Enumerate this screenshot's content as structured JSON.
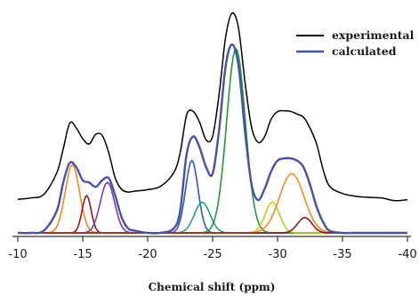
{
  "chart_data": {
    "type": "line",
    "xlabel": "Chemical shift (ppm)",
    "ylabel": "",
    "xlim": [
      -10,
      -40
    ],
    "x_reversed": false,
    "grid": false,
    "legend_placement": "top-right",
    "x_ticks": [
      -10,
      -15,
      -20,
      -25,
      -30,
      -35,
      -40
    ],
    "x_tick_labels": [
      "-10",
      "-15",
      "-20",
      "-25",
      "-30",
      "-35",
      "-40"
    ],
    "series": [
      {
        "name": "experimental",
        "color": "#000000",
        "x": [
          -10,
          -11,
          -12,
          -13,
          -13.5,
          -14,
          -14.5,
          -15,
          -15.5,
          -16,
          -16.5,
          -17,
          -17.5,
          -18,
          -18.5,
          -19,
          -20,
          -21,
          -22,
          -22.5,
          -23,
          -23.5,
          -24,
          -24.5,
          -25,
          -25.5,
          -26,
          -26.5,
          -27,
          -27.5,
          -28,
          -28.5,
          -29,
          -29.5,
          -30,
          -30.5,
          -31,
          -31.5,
          -32,
          -32.5,
          -33,
          -33.5,
          -34,
          -35,
          -36,
          -37,
          -38,
          -39,
          -40
        ],
        "y": [
          0.09,
          0.1,
          0.12,
          0.22,
          0.34,
          0.46,
          0.44,
          0.39,
          0.36,
          0.41,
          0.4,
          0.32,
          0.2,
          0.14,
          0.13,
          0.13,
          0.14,
          0.16,
          0.22,
          0.32,
          0.5,
          0.52,
          0.47,
          0.38,
          0.4,
          0.6,
          0.88,
          1.0,
          0.92,
          0.66,
          0.44,
          0.37,
          0.4,
          0.48,
          0.52,
          0.52,
          0.52,
          0.51,
          0.49,
          0.44,
          0.36,
          0.24,
          0.16,
          0.12,
          0.11,
          0.1,
          0.1,
          0.09,
          0.09
        ]
      },
      {
        "name": "calculated",
        "color": "#4452a8",
        "x": [
          -10,
          -11,
          -12,
          -13,
          -13.5,
          -14,
          -14.5,
          -15,
          -15.5,
          -16,
          -16.5,
          -17,
          -17.5,
          -18,
          -18.5,
          -19,
          -20,
          -21,
          -22,
          -22.5,
          -23,
          -23.5,
          -24,
          -24.5,
          -25,
          -25.5,
          -26,
          -26.5,
          -27,
          -27.5,
          -28,
          -28.5,
          -29,
          -29.5,
          -30,
          -30.5,
          -31,
          -31.5,
          -32,
          -32.5,
          -33,
          -33.5,
          -34,
          -35,
          -36,
          -37,
          -38,
          -39,
          -40
        ],
        "y": [
          0.0,
          0.0,
          0.01,
          0.1,
          0.23,
          0.32,
          0.3,
          0.24,
          0.23,
          0.21,
          0.24,
          0.25,
          0.17,
          0.07,
          0.02,
          0.01,
          0.0,
          0.0,
          0.02,
          0.1,
          0.36,
          0.44,
          0.39,
          0.3,
          0.27,
          0.47,
          0.76,
          0.86,
          0.76,
          0.46,
          0.22,
          0.15,
          0.2,
          0.28,
          0.33,
          0.34,
          0.34,
          0.33,
          0.3,
          0.22,
          0.12,
          0.05,
          0.01,
          0.0,
          0.0,
          0.0,
          0.0,
          0.0,
          0.0
        ]
      }
    ],
    "components": [
      {
        "color": "#f08a1c",
        "center": -14.2,
        "height": 0.31,
        "width": 0.55
      },
      {
        "color": "#a01418",
        "center": -15.3,
        "height": 0.17,
        "width": 0.35
      },
      {
        "color": "#7a3ea6",
        "center": -16.9,
        "height": 0.23,
        "width": 0.55
      },
      {
        "color": "#2e58b8",
        "center": -23.4,
        "height": 0.33,
        "width": 0.48
      },
      {
        "color": "#1aa08e",
        "center": -24.2,
        "height": 0.14,
        "width": 0.6
      },
      {
        "color": "#1e9c3a",
        "center": -26.8,
        "height": 0.84,
        "width": 0.72
      },
      {
        "color": "#c2cc1e",
        "center": -29.6,
        "height": 0.14,
        "width": 0.55
      },
      {
        "color": "#f08a1c",
        "center": -31.1,
        "height": 0.27,
        "width": 0.95
      },
      {
        "color": "#a01418",
        "center": -32.1,
        "height": 0.07,
        "width": 0.55
      }
    ]
  }
}
